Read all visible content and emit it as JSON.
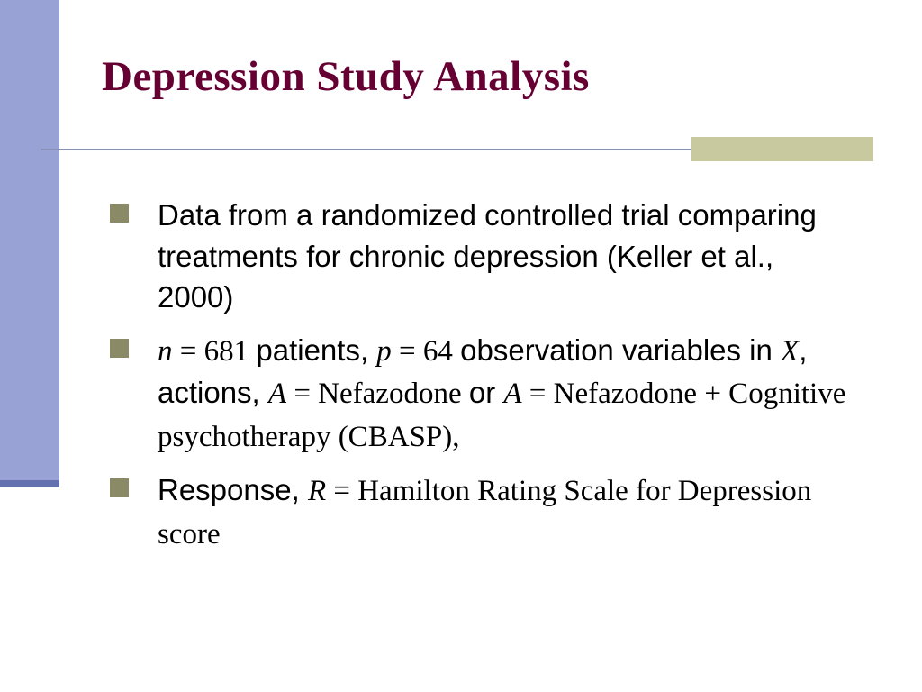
{
  "slide": {
    "title": "Depression Study Analysis",
    "bullets": [
      {
        "segments": [
          {
            "text": "Data from a randomized controlled trial comparing treatments for chronic depression (Keller et al., 2000)",
            "style": "sans"
          }
        ]
      },
      {
        "segments": [
          {
            "text": "n",
            "style": "serif-italic"
          },
          {
            "text": " = 681 ",
            "style": "serif"
          },
          {
            "text": "patients, ",
            "style": "sans"
          },
          {
            "text": "p",
            "style": "serif-italic"
          },
          {
            "text": " = 64 ",
            "style": "serif"
          },
          {
            "text": "observation variables in ",
            "style": "sans"
          },
          {
            "text": "X",
            "style": "serif-italic"
          },
          {
            "text": ", actions, ",
            "style": "sans"
          },
          {
            "text": "A",
            "style": "serif-italic"
          },
          {
            "text": " = Nefazodone ",
            "style": "serif"
          },
          {
            "text": "or ",
            "style": "sans"
          },
          {
            "text": "A",
            "style": "serif-italic"
          },
          {
            "text": " = Nefazodone + Cognitive psychotherapy (CBASP),",
            "style": "serif"
          }
        ]
      },
      {
        "segments": [
          {
            "text": "Response, ",
            "style": "sans"
          },
          {
            "text": "R",
            "style": "serif-italic"
          },
          {
            "text": " = Hamilton Rating Scale for Depression score",
            "style": "serif"
          }
        ]
      }
    ],
    "colors": {
      "title": "#660033",
      "body": "#000000",
      "bullet_marker": "#8a8a66",
      "left_bar": "#98a2d4",
      "left_bar_edge": "#6372ae",
      "accent_bar": "#c9c99f",
      "divider": "#8890b8"
    }
  }
}
